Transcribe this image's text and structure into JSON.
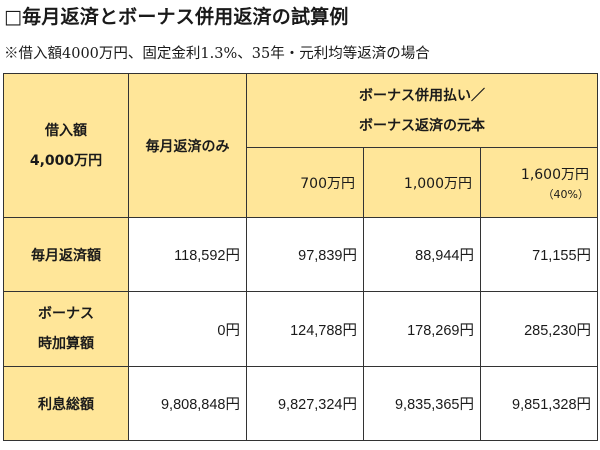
{
  "title": "□毎月返済とボーナス併用返済の試算例",
  "subtitle": "※借入額4000万円、固定金利1.3%、35年・元利均等返済の場合",
  "table": {
    "corner": {
      "line1": "借入額",
      "line2": "4,000万円"
    },
    "monthly_only": "毎月返済のみ",
    "bonus_header": {
      "line1": "ボーナス併用払い／",
      "line2": "ボーナス返済の元本"
    },
    "bonus_columns": [
      {
        "label": "700万円",
        "note": ""
      },
      {
        "label": "1,000万円",
        "note": ""
      },
      {
        "label": "1,600万円",
        "note": "（40%）"
      }
    ],
    "rows": [
      {
        "label": [
          "毎月返済額"
        ],
        "values": [
          "118,592円",
          "97,839円",
          "88,944円",
          "71,155円"
        ]
      },
      {
        "label": [
          "ボーナス",
          "時加算額"
        ],
        "values": [
          "0円",
          "124,788円",
          "178,269円",
          "285,230円"
        ]
      },
      {
        "label": [
          "利息総額"
        ],
        "values": [
          "9,808,848円",
          "9,827,324円",
          "9,835,365円",
          "9,851,328円"
        ]
      }
    ]
  }
}
